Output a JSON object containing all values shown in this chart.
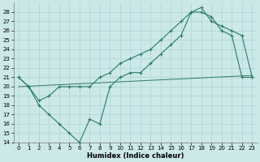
{
  "xlabel": "Humidex (Indice chaleur)",
  "background_color": "#cce8e8",
  "grid_color": "#aad4d4",
  "line_color": "#2a7a6a",
  "xlim": [
    -0.5,
    23.5
  ],
  "ylim": [
    14,
    29
  ],
  "xticks": [
    0,
    1,
    2,
    3,
    4,
    5,
    6,
    7,
    8,
    9,
    10,
    11,
    12,
    13,
    14,
    15,
    16,
    17,
    18,
    19,
    20,
    21,
    22,
    23
  ],
  "yticks": [
    14,
    15,
    16,
    17,
    18,
    19,
    20,
    21,
    22,
    23,
    24,
    25,
    26,
    27,
    28
  ],
  "line1_x": [
    0,
    1,
    2,
    3,
    4,
    5,
    6,
    7,
    8,
    9,
    10,
    11,
    12,
    13,
    14,
    15,
    16,
    17,
    18,
    19,
    20,
    21,
    22,
    23
  ],
  "line1_y": [
    21,
    20,
    18,
    17,
    16,
    15,
    14,
    16.5,
    16,
    20,
    21,
    21.5,
    21.5,
    22.5,
    23.5,
    24.5,
    25.5,
    28,
    28,
    27.5,
    26,
    25.5,
    21,
    21
  ],
  "line2_x": [
    0,
    1,
    2,
    3,
    4,
    5,
    6,
    7,
    8,
    9,
    10,
    11,
    12,
    13,
    14,
    15,
    16,
    17,
    18,
    19,
    20,
    21,
    22,
    23
  ],
  "line2_y": [
    21,
    20,
    18.5,
    19,
    20,
    20,
    20,
    20,
    21,
    21.5,
    22.5,
    23,
    23.5,
    24,
    25,
    26,
    27,
    28,
    28.5,
    27,
    26.5,
    26,
    25.5,
    21
  ],
  "line3_x": [
    0,
    23
  ],
  "line3_y": [
    20,
    21.2
  ],
  "xlabel_fontsize": 6,
  "tick_fontsize": 5
}
